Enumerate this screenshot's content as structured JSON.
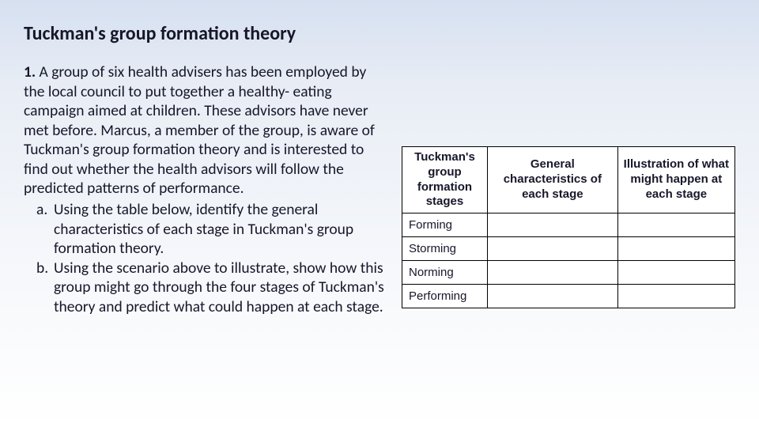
{
  "title": "Tuckman's group formation theory",
  "question_number": "1.",
  "intro_text": " A group of six health advisers has been employed by the local council to put together a healthy- eating campaign aimed at children. These advisors have never met before. Marcus, a member of the group, is aware of Tuckman's group formation theory and is interested to find out whether the health advisors will follow the predicted patterns of performance.",
  "parts": [
    {
      "marker": "a.",
      "text": "Using the table below, identify the general characteristics of each stage in Tuckman's group formation theory."
    },
    {
      "marker": "b.",
      "text": "Using the scenario above to illustrate, show how this group might go through the four stages of Tuckman's theory and predict what could happen at each stage."
    }
  ],
  "table": {
    "headers": [
      "Tuckman's group formation stages",
      "General characteristics of each stage",
      "Illustration of what might happen at each stage"
    ],
    "rows": [
      {
        "stage": "Forming",
        "c2": "",
        "c3": ""
      },
      {
        "stage": "Storming",
        "c2": "",
        "c3": ""
      },
      {
        "stage": "Norming",
        "c2": "",
        "c3": ""
      },
      {
        "stage": "Performing",
        "c2": "",
        "c3": ""
      }
    ]
  },
  "style": {
    "background_top": "#d6e0f0",
    "background_bottom": "#ffffff",
    "text_color": "#17172a",
    "title_fontsize": 24,
    "body_fontsize": 19.5,
    "table_fontsize": 15,
    "border_color": "#000000",
    "cell_background": "#ffffff"
  }
}
